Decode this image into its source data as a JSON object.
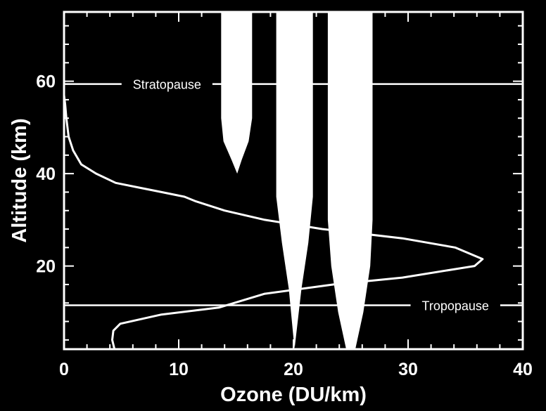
{
  "chart_data": {
    "type": "line",
    "xlabel": "Ozone (DU/km)",
    "ylabel": "Altitude (km)",
    "xlim": [
      0,
      40
    ],
    "ylim": [
      2,
      75
    ],
    "x_ticks": [
      0,
      10,
      20,
      30,
      40
    ],
    "y_ticks": [
      20,
      40,
      60
    ],
    "grid": false,
    "legend": "none",
    "colors": {
      "background": "#000000",
      "foreground": "#ffffff"
    },
    "series": [
      {
        "values": [
          {
            "x": 4.4,
            "y": 2
          },
          {
            "x": 4.2,
            "y": 4
          },
          {
            "x": 4.3,
            "y": 6
          },
          {
            "x": 4.9,
            "y": 7.5
          },
          {
            "x": 8.5,
            "y": 9.5
          },
          {
            "x": 13.5,
            "y": 11
          },
          {
            "x": 17.5,
            "y": 14
          },
          {
            "x": 23.5,
            "y": 16
          },
          {
            "x": 29.5,
            "y": 17.5
          },
          {
            "x": 35.8,
            "y": 20
          },
          {
            "x": 36.5,
            "y": 21.5
          },
          {
            "x": 34.1,
            "y": 24
          },
          {
            "x": 29.5,
            "y": 26
          },
          {
            "x": 22.5,
            "y": 28
          },
          {
            "x": 17.5,
            "y": 30
          },
          {
            "x": 14,
            "y": 32
          },
          {
            "x": 11.5,
            "y": 34
          },
          {
            "x": 10.5,
            "y": 35
          },
          {
            "x": 8.5,
            "y": 36
          },
          {
            "x": 6.5,
            "y": 37
          },
          {
            "x": 4.5,
            "y": 38
          },
          {
            "x": 2.8,
            "y": 40
          },
          {
            "x": 1.5,
            "y": 42
          },
          {
            "x": 0.8,
            "y": 45
          },
          {
            "x": 0.4,
            "y": 48
          },
          {
            "x": 0.2,
            "y": 52
          },
          {
            "x": 0.1,
            "y": 55
          },
          {
            "x": 0,
            "y": 57
          }
        ]
      }
    ],
    "bands": [
      {
        "left": [
          [
            15.1,
            33
          ],
          [
            15.1,
            40
          ],
          [
            14.6,
            43
          ],
          [
            13.9,
            47
          ],
          [
            13.7,
            52
          ],
          [
            13.7,
            75
          ]
        ],
        "right": [
          [
            15.1,
            33
          ],
          [
            15.1,
            40
          ],
          [
            15.5,
            43
          ],
          [
            16.1,
            47
          ],
          [
            16.4,
            52
          ],
          [
            16.4,
            75
          ]
        ]
      },
      {
        "left": [
          [
            20.1,
            2
          ],
          [
            19.6,
            15
          ],
          [
            19,
            25
          ],
          [
            18.5,
            35
          ],
          [
            18.5,
            75
          ]
        ],
        "right": [
          [
            20.1,
            2
          ],
          [
            20.7,
            15
          ],
          [
            21.3,
            25
          ],
          [
            21.7,
            35
          ],
          [
            21.7,
            75
          ]
        ]
      },
      {
        "left": [
          [
            24.6,
            2
          ],
          [
            23.9,
            10
          ],
          [
            23.3,
            20
          ],
          [
            23,
            30
          ],
          [
            23,
            75
          ]
        ],
        "right": [
          [
            25.4,
            2
          ],
          [
            26.1,
            10
          ],
          [
            26.7,
            20
          ],
          [
            26.9,
            30
          ],
          [
            26.9,
            75
          ]
        ]
      }
    ],
    "annotations": [
      {
        "text": "Stratopause",
        "y": 59.4,
        "label_x": 6,
        "line_x0": 0,
        "line_x1": 40
      },
      {
        "text": "Tropopause",
        "y": 11.5,
        "label_x": 31.2,
        "line_x0": 0,
        "line_x1": 40
      }
    ]
  }
}
